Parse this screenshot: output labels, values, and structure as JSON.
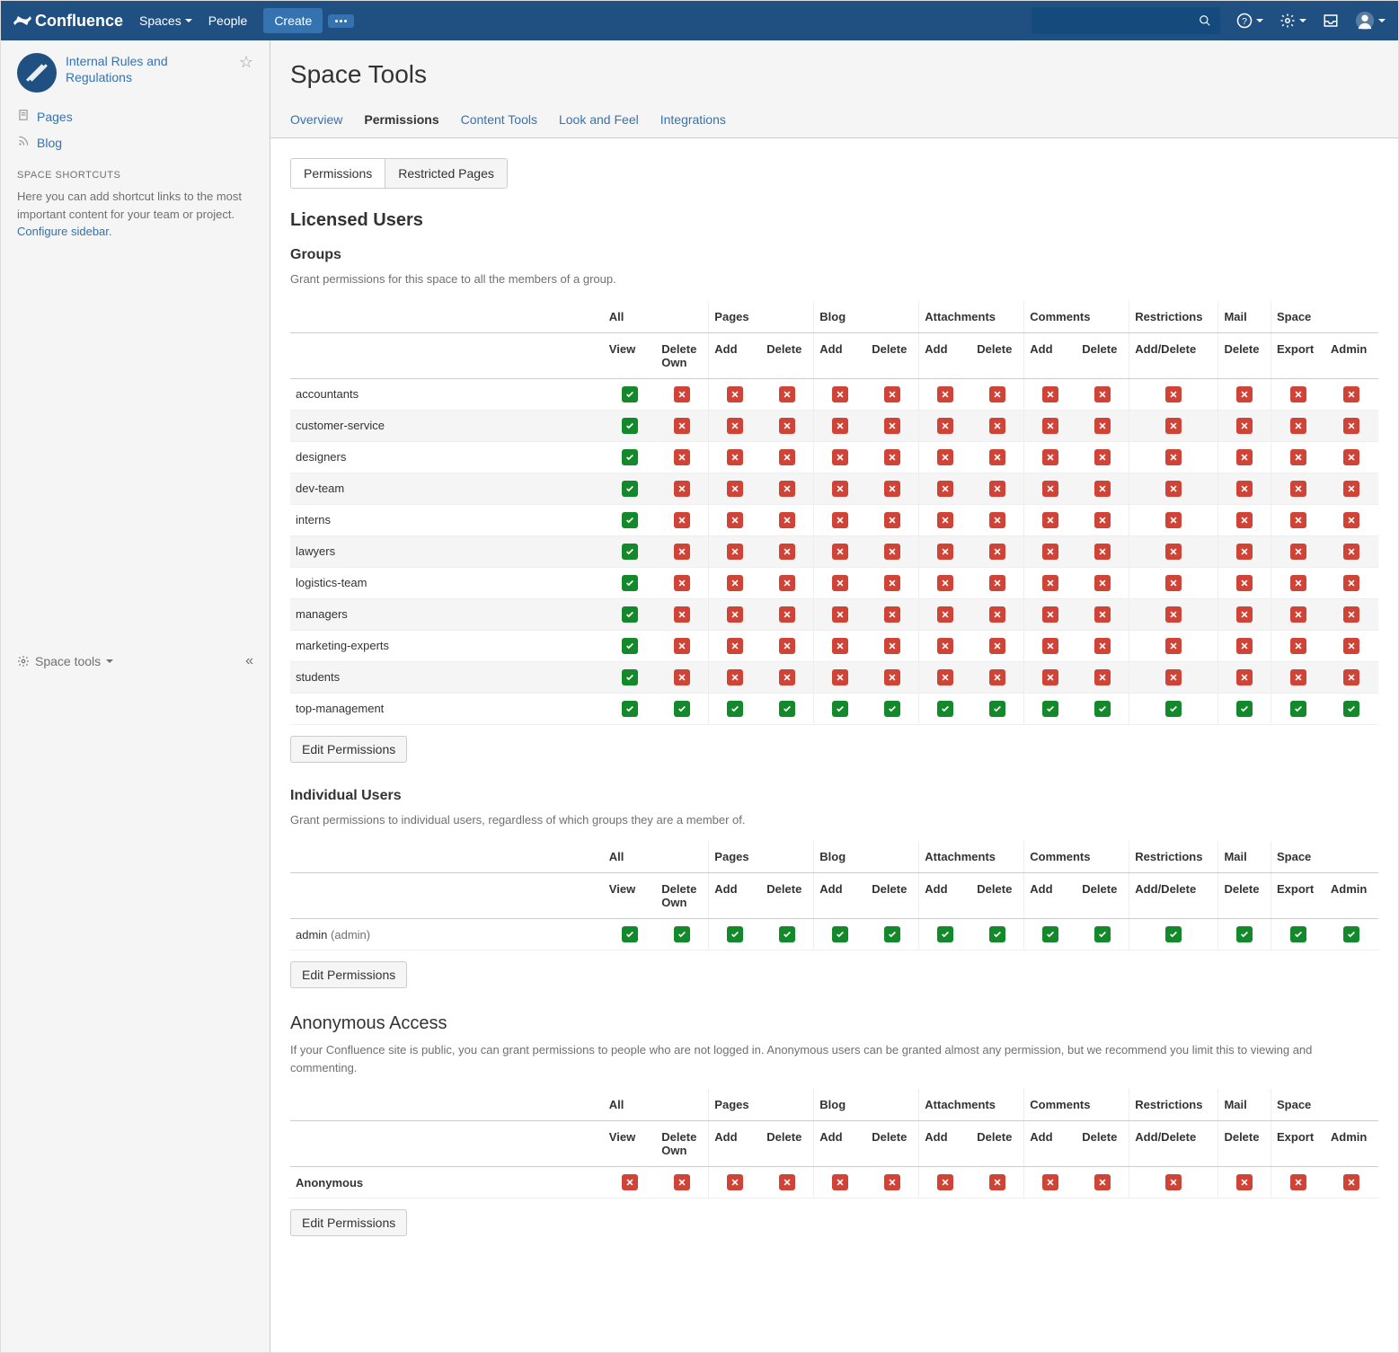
{
  "colors": {
    "primary": "#205081",
    "link": "#3572b0",
    "granted": "#14892c",
    "denied": "#d04437",
    "bg_alt": "#f5f5f5",
    "border": "#cccccc",
    "text": "#333333",
    "muted": "#707070"
  },
  "topnav": {
    "logo": "Confluence",
    "spaces": "Spaces",
    "people": "People",
    "create": "Create"
  },
  "sidebar": {
    "space_name": "Internal Rules and Regulations",
    "pages": "Pages",
    "blog": "Blog",
    "shortcuts_heading": "SPACE SHORTCUTS",
    "shortcuts_desc": "Here you can add shortcut links to the most important content for your team or project. ",
    "configure_link": "Configure sidebar",
    "space_tools": "Space tools"
  },
  "header": {
    "title": "Space Tools",
    "tabs": [
      "Overview",
      "Permissions",
      "Content Tools",
      "Look and Feel",
      "Integrations"
    ],
    "active_tab": 1
  },
  "subtabs": {
    "items": [
      "Permissions",
      "Restricted Pages"
    ],
    "active": 0
  },
  "sections": {
    "licensed_title": "Licensed Users",
    "groups_title": "Groups",
    "groups_desc": "Grant permissions for this space to all the members of a group.",
    "individual_title": "Individual Users",
    "individual_desc": "Grant permissions to individual users, regardless of which groups they are a member of.",
    "anon_title": "Anonymous Access",
    "anon_desc": "If your Confluence site is public, you can grant permissions to people who are not logged in. Anonymous users can be granted almost any permission, but we recommend you limit this to viewing and commenting.",
    "edit_btn": "Edit Permissions"
  },
  "perm_columns": {
    "groups": [
      {
        "label": "All",
        "subs": [
          "View",
          "Delete Own"
        ]
      },
      {
        "label": "Pages",
        "subs": [
          "Add",
          "Delete"
        ]
      },
      {
        "label": "Blog",
        "subs": [
          "Add",
          "Delete"
        ]
      },
      {
        "label": "Attachments",
        "subs": [
          "Add",
          "Delete"
        ]
      },
      {
        "label": "Comments",
        "subs": [
          "Add",
          "Delete"
        ]
      },
      {
        "label": "Restrictions",
        "subs": [
          "Add/Delete"
        ]
      },
      {
        "label": "Mail",
        "subs": [
          "Delete"
        ]
      },
      {
        "label": "Space",
        "subs": [
          "Export",
          "Admin"
        ]
      }
    ]
  },
  "groups_rows": [
    {
      "name": "accountants",
      "perms": [
        1,
        0,
        0,
        0,
        0,
        0,
        0,
        0,
        0,
        0,
        0,
        0,
        0,
        0
      ]
    },
    {
      "name": "customer-service",
      "perms": [
        1,
        0,
        0,
        0,
        0,
        0,
        0,
        0,
        0,
        0,
        0,
        0,
        0,
        0
      ]
    },
    {
      "name": "designers",
      "perms": [
        1,
        0,
        0,
        0,
        0,
        0,
        0,
        0,
        0,
        0,
        0,
        0,
        0,
        0
      ]
    },
    {
      "name": "dev-team",
      "perms": [
        1,
        0,
        0,
        0,
        0,
        0,
        0,
        0,
        0,
        0,
        0,
        0,
        0,
        0
      ]
    },
    {
      "name": "interns",
      "perms": [
        1,
        0,
        0,
        0,
        0,
        0,
        0,
        0,
        0,
        0,
        0,
        0,
        0,
        0
      ]
    },
    {
      "name": "lawyers",
      "perms": [
        1,
        0,
        0,
        0,
        0,
        0,
        0,
        0,
        0,
        0,
        0,
        0,
        0,
        0
      ]
    },
    {
      "name": "logistics-team",
      "perms": [
        1,
        0,
        0,
        0,
        0,
        0,
        0,
        0,
        0,
        0,
        0,
        0,
        0,
        0
      ]
    },
    {
      "name": "managers",
      "perms": [
        1,
        0,
        0,
        0,
        0,
        0,
        0,
        0,
        0,
        0,
        0,
        0,
        0,
        0
      ]
    },
    {
      "name": "marketing-experts",
      "perms": [
        1,
        0,
        0,
        0,
        0,
        0,
        0,
        0,
        0,
        0,
        0,
        0,
        0,
        0
      ]
    },
    {
      "name": "students",
      "perms": [
        1,
        0,
        0,
        0,
        0,
        0,
        0,
        0,
        0,
        0,
        0,
        0,
        0,
        0
      ]
    },
    {
      "name": "top-management",
      "perms": [
        1,
        1,
        1,
        1,
        1,
        1,
        1,
        1,
        1,
        1,
        1,
        1,
        1,
        1
      ]
    }
  ],
  "users_rows": [
    {
      "name": "admin",
      "detail": "(admin)",
      "perms": [
        1,
        1,
        1,
        1,
        1,
        1,
        1,
        1,
        1,
        1,
        1,
        1,
        1,
        1
      ]
    }
  ],
  "anon_rows": [
    {
      "name": "Anonymous",
      "bold": true,
      "perms": [
        0,
        0,
        0,
        0,
        0,
        0,
        0,
        0,
        0,
        0,
        0,
        0,
        0,
        0
      ]
    }
  ]
}
